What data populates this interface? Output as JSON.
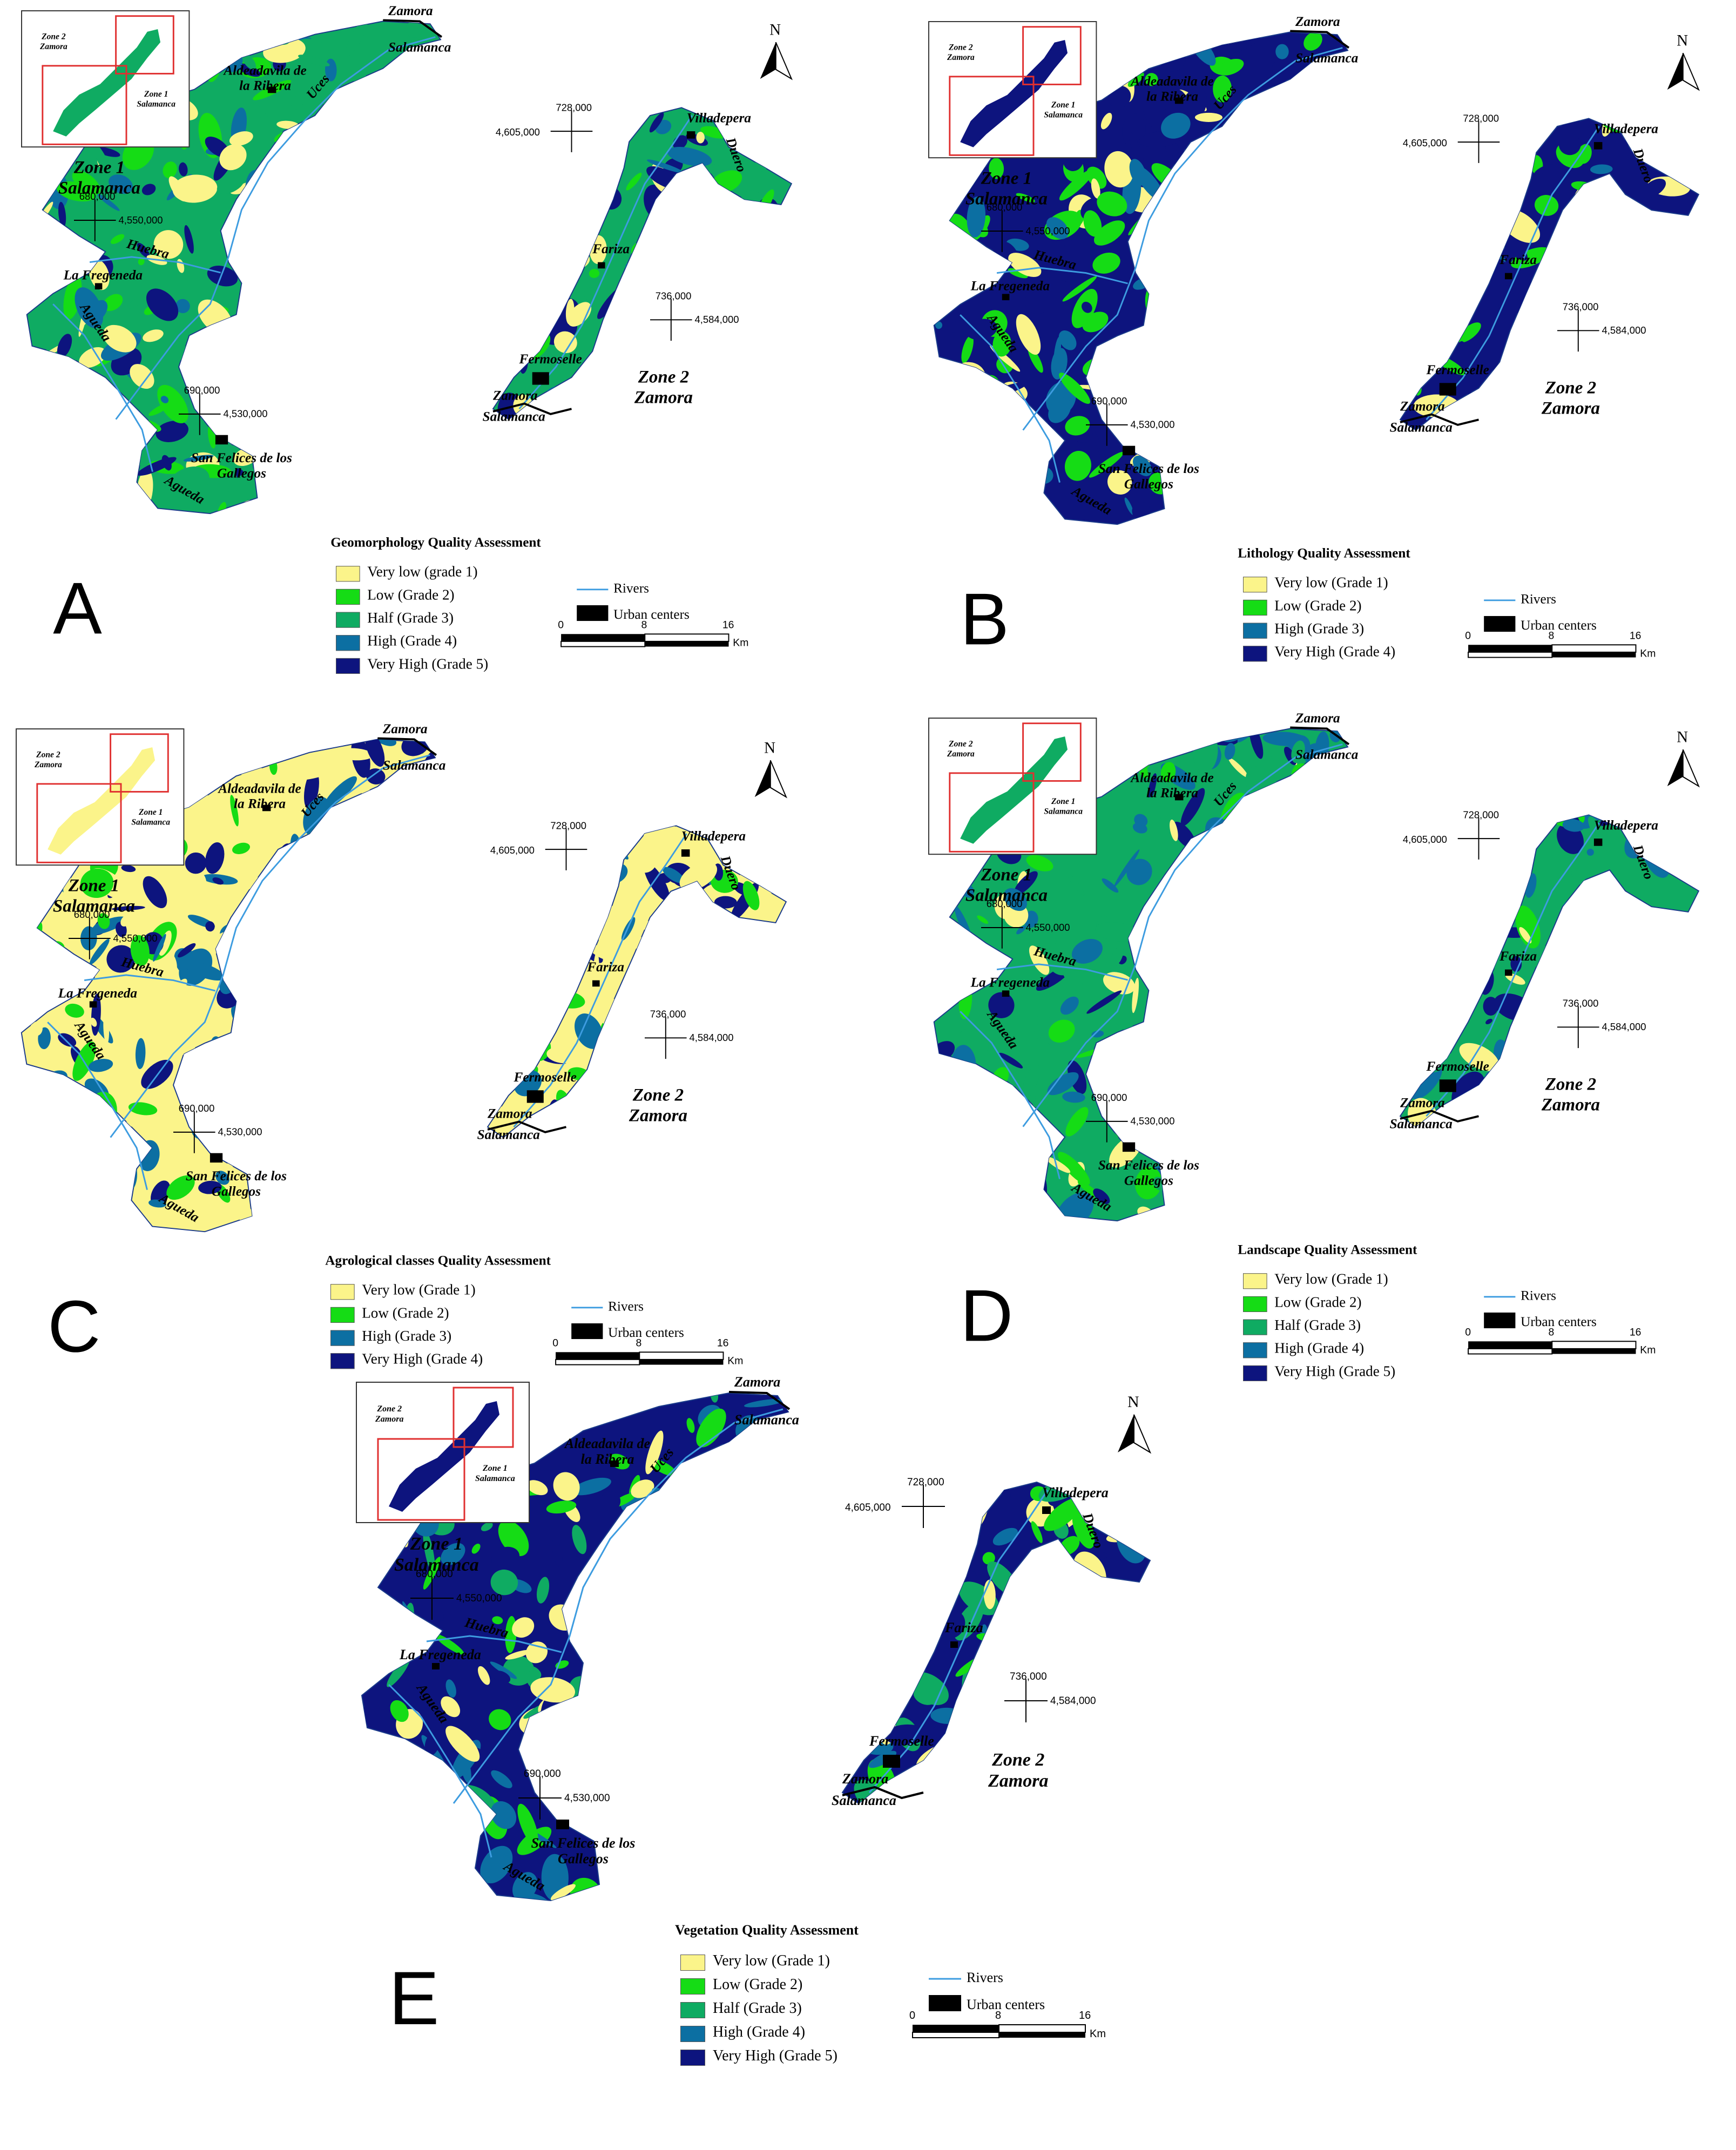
{
  "colors": {
    "very_low": "#fbf48a",
    "low": "#15dc15",
    "half": "#0fab62",
    "high": "#0c6fa2",
    "very_high": "#0d147e",
    "river": "#3d9ce0",
    "urban": "#000000",
    "inset_frame": "#e03030"
  },
  "common": {
    "zone1": "Zone 1",
    "salamanca": "Salamanca",
    "zone2": "Zone 2",
    "zamora": "Zamora",
    "north": "N",
    "rivers": "Rivers",
    "urban_centers": "Urban centers",
    "scale_0": "0",
    "scale_8": "8",
    "scale_16": "16",
    "scale_unit": "Km",
    "coord_680": "680,000",
    "coord_4550": "4,550,000",
    "coord_690": "690,000",
    "coord_4530": "4,530,000",
    "coord_728": "728,000",
    "coord_4605": "4,605,000",
    "coord_736": "736,000",
    "coord_4584": "4,584,000"
  },
  "places": {
    "aldeadavila": "Aldeadavila de la Ribera",
    "villadepera": "Villadepera",
    "fariza": "Fariza",
    "fermoselle": "Fermoselle",
    "la_fregeneda": "La Fregeneda",
    "san_felices": "San Felices de los Gallegos",
    "huebra": "Huebra",
    "agueda": "Agueda",
    "duero": "Duero",
    "uces": "Uces",
    "zamora_top": "Zamora",
    "salamanca_top": "Salamanca",
    "zamora_bottom": "Zamora",
    "salamanca_bottom": "Salamanca"
  },
  "panels": [
    {
      "letter": "A",
      "legend_title": "Geomorphology Quality Assessment",
      "classes": [
        "Very low (grade 1)",
        "Low (Grade 2)",
        "Half (Grade 3)",
        "High (Grade 4)",
        "Very High (Grade 5)"
      ],
      "class_keys": [
        "very_low",
        "low",
        "half",
        "high",
        "very_high"
      ]
    },
    {
      "letter": "B",
      "legend_title": "Lithology Quality Assessment",
      "classes": [
        "Very low (Grade 1)",
        "Low (Grade 2)",
        "High (Grade 3)",
        "Very High (Grade 4)"
      ],
      "class_keys": [
        "very_low",
        "low",
        "high",
        "very_high"
      ]
    },
    {
      "letter": "C",
      "legend_title": "Agrological classes Quality Assessment",
      "classes": [
        "Very low (Grade 1)",
        "Low (Grade 2)",
        "High (Grade 3)",
        "Very High (Grade 4)"
      ],
      "class_keys": [
        "very_low",
        "low",
        "high",
        "very_high"
      ]
    },
    {
      "letter": "D",
      "legend_title": "Landscape Quality Assessment",
      "classes": [
        "Very low (Grade 1)",
        "Low (Grade 2)",
        "Half (Grade 3)",
        "High (Grade 4)",
        "Very High (Grade 5)"
      ],
      "class_keys": [
        "very_low",
        "low",
        "half",
        "high",
        "very_high"
      ]
    },
    {
      "letter": "E",
      "legend_title": "Vegetation Quality Assessment",
      "classes": [
        "Very low (Grade 1)",
        "Low (Grade 2)",
        "Half (Grade 3)",
        "High (Grade 4)",
        "Very High (Grade 5)"
      ],
      "class_keys": [
        "very_low",
        "low",
        "half",
        "high",
        "very_high"
      ]
    }
  ]
}
